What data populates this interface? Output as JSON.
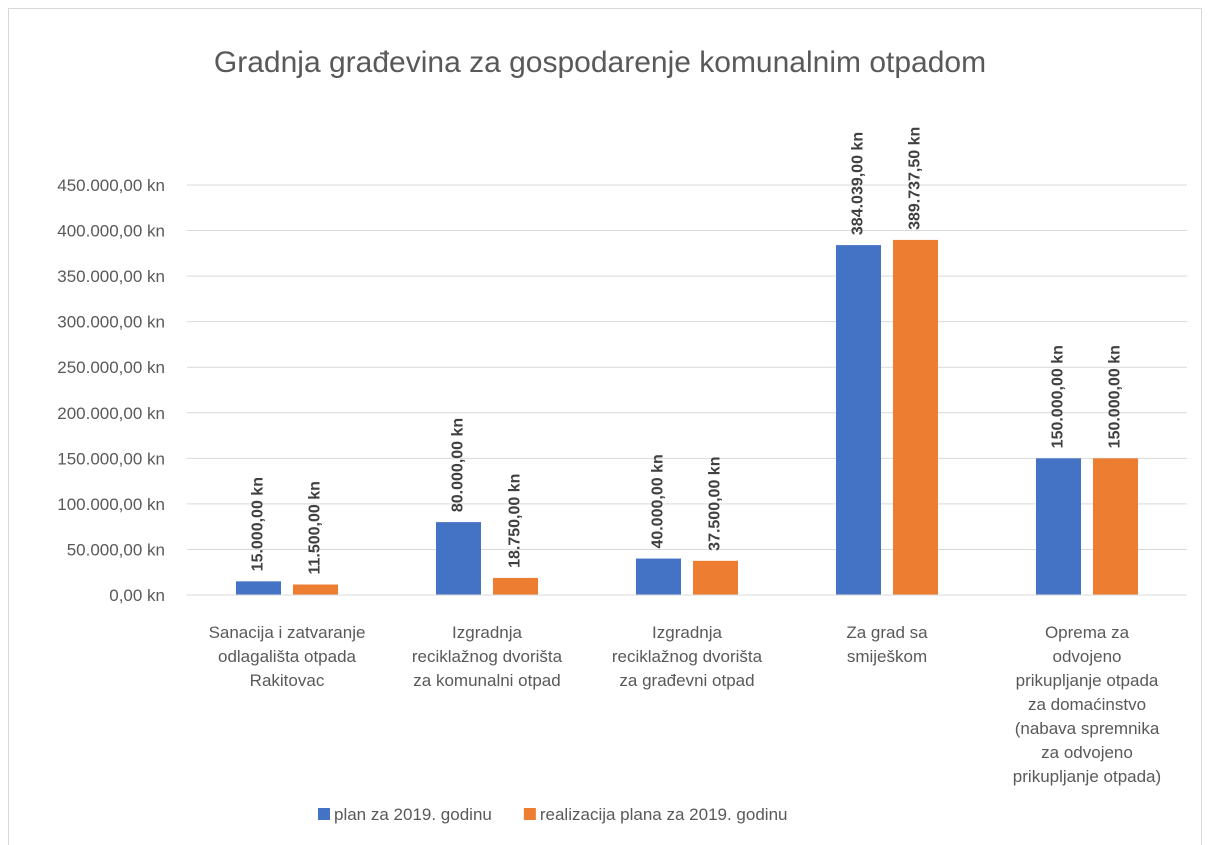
{
  "chart_data": {
    "type": "bar",
    "title": "Gradnja građevina za gospodarenje komunalnim otpadom",
    "categories": [
      "Sanacija i zatvaranje\nodlagališta otpada\nRakitovac",
      "Izgradnja\nreciklažnog dvorišta\nza komunalni otpad",
      "Izgradnja\nreciklažnog dvorišta\nza građevni otpad",
      "Za grad sa\nsmiješkom",
      "Oprema za\nodvojeno\nprikupljanje otpada\nza domaćinstvo\n(nabava spremnika\nza odvojeno\nprikupljanje otpada)"
    ],
    "series": [
      {
        "name": "plan za 2019. godinu",
        "color": "#4472c4",
        "values": [
          15000,
          80000,
          40000,
          384039,
          150000
        ],
        "value_labels": [
          "15.000,00 kn",
          "80.000,00 kn",
          "40.000,00 kn",
          "384.039,00 kn",
          "150.000,00 kn"
        ]
      },
      {
        "name": "realizacija plana za 2019. godinu",
        "color": "#ed7d31",
        "values": [
          11500,
          18750,
          37500,
          389737.5,
          150000
        ],
        "value_labels": [
          "11.500,00 kn",
          "18.750,00 kn",
          "37.500,00 kn",
          "389.737,50 kn",
          "150.000,00 kn"
        ]
      }
    ],
    "ylim": [
      0,
      450000
    ],
    "yticks": [
      {
        "value": 0,
        "label": "0,00 kn"
      },
      {
        "value": 50000,
        "label": "50.000,00 kn"
      },
      {
        "value": 100000,
        "label": "100.000,00 kn"
      },
      {
        "value": 150000,
        "label": "150.000,00 kn"
      },
      {
        "value": 200000,
        "label": "200.000,00 kn"
      },
      {
        "value": 250000,
        "label": "250.000,00 kn"
      },
      {
        "value": 300000,
        "label": "300.000,00 kn"
      },
      {
        "value": 350000,
        "label": "350.000,00 kn"
      },
      {
        "value": 400000,
        "label": "400.000,00 kn"
      },
      {
        "value": 450000,
        "label": "450.000,00 kn"
      }
    ],
    "grid": true,
    "legend": "bottom"
  }
}
